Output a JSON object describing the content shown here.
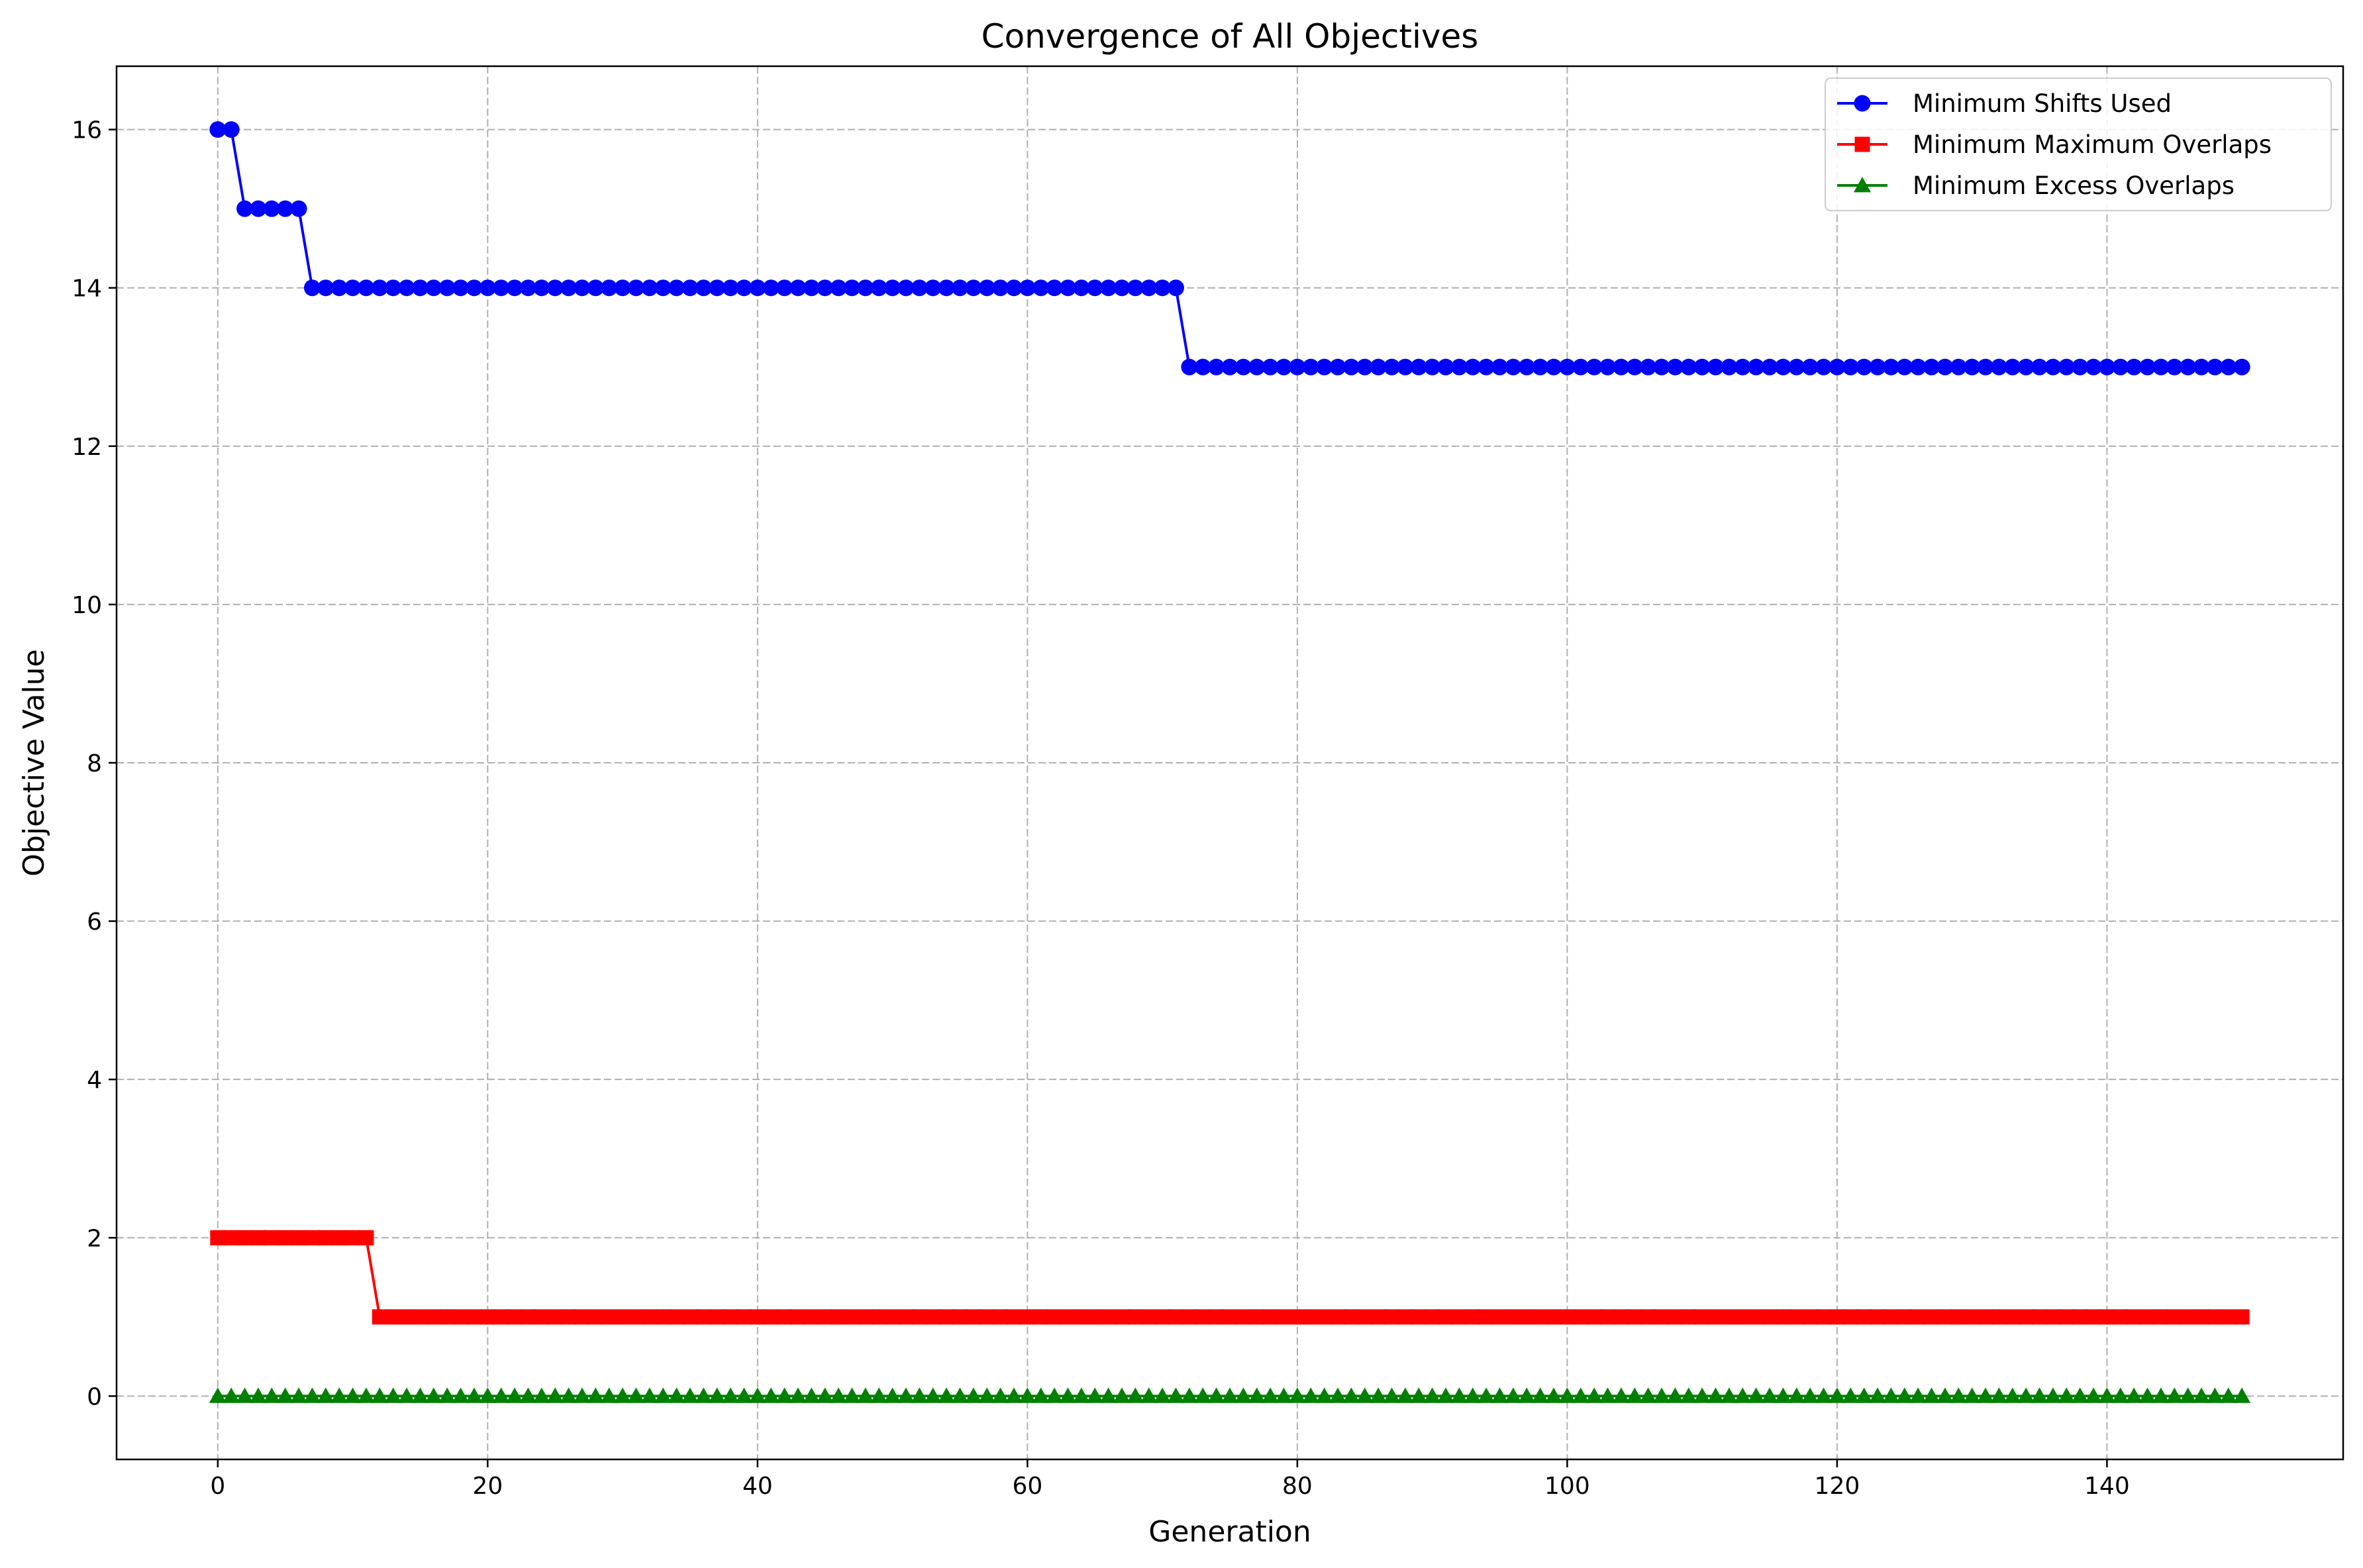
{
  "chart_data": {
    "type": "line",
    "title": "Convergence of All Objectives",
    "xlabel": "Generation",
    "ylabel": "Objective Value",
    "xlim": [
      -7.5,
      157.5
    ],
    "ylim": [
      -0.8,
      16.8
    ],
    "xticks": [
      0,
      20,
      40,
      60,
      80,
      100,
      120,
      140
    ],
    "yticks": [
      0,
      2,
      4,
      6,
      8,
      10,
      12,
      14,
      16
    ],
    "grid": true,
    "legend_position": "top-right",
    "generations": {
      "start": 0,
      "end": 150
    },
    "series": [
      {
        "name": "Minimum Shifts Used",
        "color": "#0000ff",
        "marker": "circle",
        "steps": [
          {
            "from": 0,
            "to": 1,
            "value": 16
          },
          {
            "from": 2,
            "to": 6,
            "value": 15
          },
          {
            "from": 7,
            "to": 71,
            "value": 14
          },
          {
            "from": 72,
            "to": 150,
            "value": 13
          }
        ]
      },
      {
        "name": "Minimum Maximum Overlaps",
        "color": "#ff0000",
        "marker": "square",
        "steps": [
          {
            "from": 0,
            "to": 11,
            "value": 2
          },
          {
            "from": 12,
            "to": 150,
            "value": 1
          }
        ]
      },
      {
        "name": "Minimum Excess Overlaps",
        "color": "#008000",
        "marker": "triangle",
        "steps": [
          {
            "from": 0,
            "to": 150,
            "value": 0
          }
        ]
      }
    ]
  }
}
